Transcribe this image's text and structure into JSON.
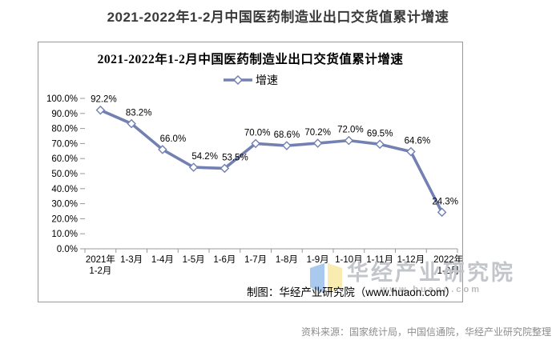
{
  "page": {
    "title": "2021-2022年1-2月中国医药制造业出口交货值累计增速",
    "source_note": "资料来源：国家统计局，中国信通院，华经产业研究院整理"
  },
  "chart": {
    "inner_title": "2021-2022年1-2月中国医药制造业出口交货值累计增速",
    "legend_label": "增速",
    "credit": "制图：华经产业研究院（www.huaon.com）",
    "watermark": {
      "name": "华经产业研究院",
      "url": "www.huaon.com"
    },
    "colors": {
      "line": "#7280b2",
      "marker_fill": "#ffffff",
      "axis": "#999999",
      "frame_border": "#999999",
      "watermark_text": "#c2c5c9",
      "logo_blue": "#a9c9ee",
      "logo_yellow": "#f8ecb0",
      "source_text": "#8d8d8d",
      "page_title_text": "#3a3a3a"
    }
  },
  "chart_data": {
    "type": "line",
    "title": "2021-2022年1-2月中国医药制造业出口交货值累计增速",
    "legend": [
      "增速"
    ],
    "legend_position": "top-center",
    "categories": [
      [
        "2021年",
        "1-2月"
      ],
      [
        "1-3月"
      ],
      [
        "1-4月"
      ],
      [
        "1-5月"
      ],
      [
        "1-6月"
      ],
      [
        "1-7月"
      ],
      [
        "1-8月"
      ],
      [
        "1-9月"
      ],
      [
        "1-10月"
      ],
      [
        "1-11月"
      ],
      [
        "1-12月"
      ],
      [
        "2022年",
        "1-2月"
      ]
    ],
    "values": [
      92.2,
      83.2,
      66.0,
      54.2,
      53.5,
      70.0,
      68.6,
      70.2,
      72.0,
      69.5,
      64.6,
      24.3
    ],
    "data_labels": [
      "92.2%",
      "83.2%",
      "66.0%",
      "54.2%",
      "53.5%",
      "70.0%",
      "68.6%",
      "70.2%",
      "72.0%",
      "69.5%",
      "64.6%",
      "24.3%"
    ],
    "ylim": [
      0,
      100
    ],
    "ytick_step": 10,
    "ytick_labels": [
      "0.0%",
      "10.0%",
      "20.0%",
      "30.0%",
      "40.0%",
      "50.0%",
      "60.0%",
      "70.0%",
      "80.0%",
      "90.0%",
      "100.0%"
    ],
    "grid": false,
    "marker": "diamond-open"
  }
}
